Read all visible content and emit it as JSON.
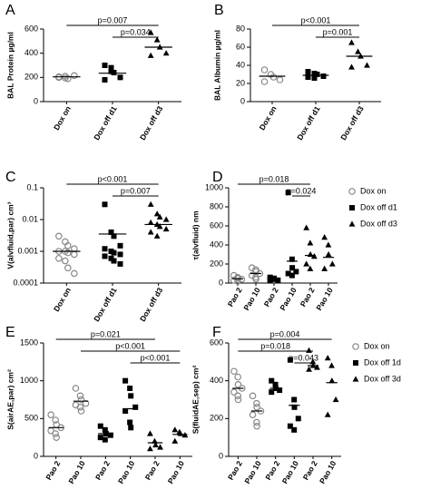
{
  "chart_data": [
    {
      "type": "scatter",
      "panel": "A",
      "ylabel": "BAL Protein µg/ml",
      "categories": [
        "Dox on",
        "Dox off d1",
        "Dox off d3"
      ],
      "markers": [
        "circle",
        "square",
        "triangle"
      ],
      "points": [
        [
          200,
          210,
          190,
          215,
          205,
          195
        ],
        [
          300,
          280,
          240,
          200,
          180,
          250
        ],
        [
          570,
          510,
          450,
          400,
          380
        ]
      ],
      "means": [
        205,
        235,
        450
      ],
      "ylim": [
        0,
        600
      ],
      "yticks": [
        0,
        200,
        400,
        600
      ],
      "annotations": [
        {
          "label": "p=0.007",
          "from": 0,
          "to": 2
        },
        {
          "label": "p=0.034",
          "from": 1,
          "to": 2
        }
      ]
    },
    {
      "type": "scatter",
      "panel": "B",
      "ylabel": "BAL Albumin µg/ml",
      "categories": [
        "Dox on",
        "Dox off d1",
        "Dox off d3"
      ],
      "markers": [
        "circle",
        "square",
        "triangle"
      ],
      "points": [
        [
          35,
          30,
          27,
          24,
          22
        ],
        [
          33,
          31,
          30,
          28,
          27,
          26
        ],
        [
          65,
          55,
          50,
          40,
          38
        ]
      ],
      "means": [
        28,
        29,
        50
      ],
      "ylim": [
        0,
        80
      ],
      "yticks": [
        0,
        20,
        40,
        60,
        80
      ],
      "annotations": [
        {
          "label": "p<0.001",
          "from": 0,
          "to": 2
        },
        {
          "label": "p=0.001",
          "from": 1,
          "to": 2
        }
      ]
    },
    {
      "type": "scatter",
      "panel": "C",
      "ylabel": "V(alvfluid,par) cm³",
      "log": true,
      "categories": [
        "Dox on",
        "Dox off d1",
        "Dox off d3"
      ],
      "markers": [
        "circle",
        "square",
        "triangle"
      ],
      "points": [
        [
          0.003,
          0.002,
          0.0015,
          0.0012,
          0.001,
          0.001,
          0.0009,
          0.0008,
          0.0006,
          0.0005,
          0.0003,
          0.0002
        ],
        [
          0.03,
          0.004,
          0.003,
          0.0015,
          0.0012,
          0.001,
          0.0009,
          0.0008,
          0.0007,
          0.0006,
          0.0005,
          0.0004
        ],
        [
          0.03,
          0.015,
          0.012,
          0.01,
          0.008,
          0.007,
          0.006,
          0.005,
          0.004,
          0.003
        ]
      ],
      "means": [
        0.001,
        0.0035,
        0.007
      ],
      "ylim": [
        0.0001,
        0.1
      ],
      "yticks": [
        0.0001,
        0.001,
        0.01,
        0.1
      ],
      "annotations": [
        {
          "label": "p<0.001",
          "from": 0,
          "to": 2
        },
        {
          "label": "p=0.007",
          "from": 1,
          "to": 2
        }
      ]
    },
    {
      "type": "scatter",
      "panel": "D",
      "ylabel": "τ(alvfluid) nm",
      "categories": [
        "Pao 2",
        "Pao 10",
        "Pao 2",
        "Pao 10",
        "Pao 2",
        "Pao 10"
      ],
      "markers": [
        "circle",
        "circle",
        "square",
        "square",
        "triangle",
        "triangle"
      ],
      "points": [
        [
          80,
          60,
          50,
          40,
          30,
          20,
          50
        ],
        [
          160,
          140,
          120,
          100,
          80,
          60,
          40
        ],
        [
          60,
          50,
          40,
          30,
          30
        ],
        [
          950,
          250,
          160,
          120,
          100,
          80
        ],
        [
          580,
          420,
          300,
          280,
          200,
          150
        ],
        [
          480,
          400,
          300,
          200,
          150
        ]
      ],
      "means": [
        45,
        100,
        45,
        230,
        290,
        270
      ],
      "ylim": [
        0,
        1000
      ],
      "yticks": [
        0,
        200,
        400,
        600,
        800,
        1000
      ],
      "legend": {
        "labels": [
          "Dox on",
          "Dox off d1",
          "Dox off d3"
        ],
        "markers": [
          "circle",
          "square",
          "triangle"
        ]
      },
      "annotations": [
        {
          "label": "p=0.018",
          "from": 0,
          "to": 4
        },
        {
          "label": "p=0.024",
          "from": 3,
          "to": 4
        }
      ]
    },
    {
      "type": "scatter",
      "panel": "E",
      "ylabel": "S(airAE,par) cm²",
      "categories": [
        "Pao 2",
        "Pao 10",
        "Pao 2",
        "Pao 10",
        "Pao 2",
        "Pao 10"
      ],
      "markers": [
        "circle",
        "circle",
        "square",
        "square",
        "triangle",
        "triangle"
      ],
      "points": [
        [
          550,
          480,
          420,
          380,
          340,
          300,
          250
        ],
        [
          900,
          800,
          750,
          700,
          680,
          650,
          600
        ],
        [
          400,
          350,
          300,
          280,
          250,
          220
        ],
        [
          1000,
          900,
          800,
          650,
          600,
          450,
          380
        ],
        [
          300,
          200,
          150,
          120,
          100
        ],
        [
          350,
          320,
          300,
          280,
          200
        ]
      ],
      "means": [
        380,
        730,
        300,
        630,
        180,
        290
      ],
      "ylim": [
        0,
        1500
      ],
      "yticks": [
        0,
        500,
        1000,
        1500
      ],
      "annotations": [
        {
          "label": "p=0.021",
          "from": 0,
          "to": 4
        },
        {
          "label": "p<0.001",
          "from": 1,
          "to": 5
        },
        {
          "label": "p<0.001",
          "from": 3,
          "to": 5
        }
      ]
    },
    {
      "type": "scatter",
      "panel": "F",
      "ylabel": "S(fluidAE,sep) cm²",
      "categories": [
        "Pao 2",
        "Pao 10",
        "Pao 2",
        "Pao 10",
        "Pao 2",
        "Pao 10"
      ],
      "markers": [
        "circle",
        "circle",
        "square",
        "square",
        "triangle",
        "triangle"
      ],
      "points": [
        [
          450,
          420,
          380,
          360,
          340,
          320,
          300
        ],
        [
          320,
          280,
          260,
          240,
          220,
          180,
          160
        ],
        [
          400,
          380,
          360,
          350,
          340
        ],
        [
          510,
          300,
          260,
          200,
          160,
          140
        ],
        [
          560,
          500,
          480,
          470,
          460
        ],
        [
          520,
          480,
          400,
          300,
          220
        ]
      ],
      "means": [
        360,
        240,
        360,
        270,
        480,
        390
      ],
      "ylim": [
        0,
        600
      ],
      "yticks": [
        0,
        200,
        400,
        600
      ],
      "legend": {
        "labels": [
          "Dox on",
          "Dox off 1d",
          "Dox off 3d"
        ],
        "markers": [
          "circle",
          "square",
          "triangle"
        ]
      },
      "annotations": [
        {
          "label": "p=0.004",
          "from": 0,
          "to": 5
        },
        {
          "label": "p=0.018",
          "from": 0,
          "to": 4
        },
        {
          "label": "p=0.043",
          "from": 3,
          "to": 4
        }
      ]
    }
  ]
}
